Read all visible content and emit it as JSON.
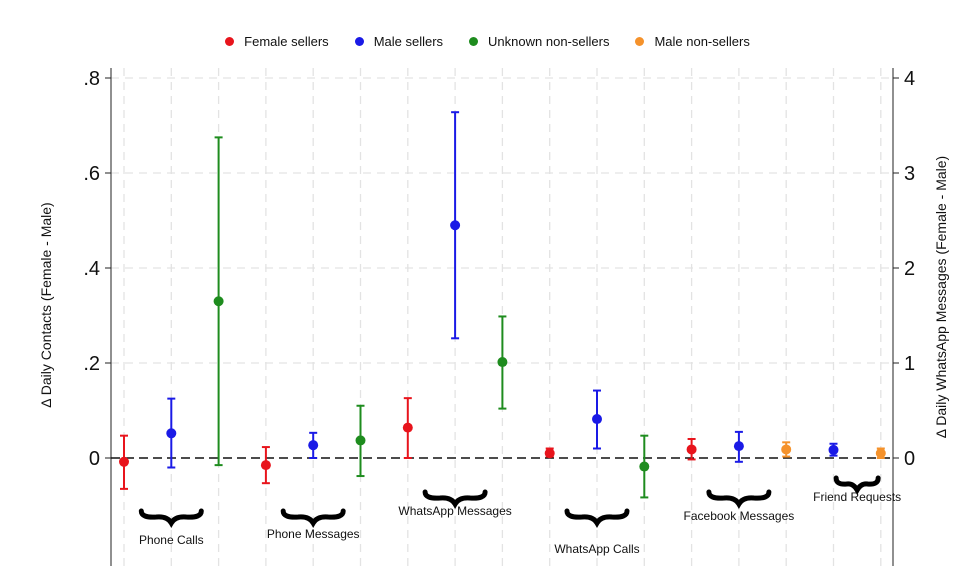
{
  "chart_data": {
    "type": "scatter",
    "subtype": "point-estimate-with-confidence-intervals",
    "legend": {
      "placement": "top-center",
      "entries": [
        {
          "label": "Female sellers",
          "color": "#e8141c"
        },
        {
          "label": "Male sellers",
          "color": "#1a1ae6"
        },
        {
          "label": "Unknown non-sellers",
          "color": "#1e8c1e"
        },
        {
          "label": "Male non-sellers",
          "color": "#f5922b"
        }
      ]
    },
    "ylabel_left": "Δ Daily Contacts (Female - Male)",
    "ylabel_right": "Δ Daily WhatsApp Messages (Female - Male)",
    "ylim_left": [
      -0.22,
      0.82
    ],
    "ylim_right": [
      -1.1,
      4.1
    ],
    "yticks_left": [
      {
        "value": 0,
        "label": "0"
      },
      {
        "value": 0.2,
        "label": ".2"
      },
      {
        "value": 0.4,
        "label": ".4"
      },
      {
        "value": 0.6,
        "label": ".6"
      },
      {
        "value": 0.8,
        "label": ".8"
      }
    ],
    "yticks_right": [
      {
        "value": 0,
        "label": "0"
      },
      {
        "value": 1,
        "label": "1"
      },
      {
        "value": 2,
        "label": "2"
      },
      {
        "value": 3,
        "label": "3"
      },
      {
        "value": 4,
        "label": "4"
      }
    ],
    "grid": true,
    "reference_line": 0,
    "groups": [
      {
        "label": "Phone Calls",
        "axis": "left",
        "points": [
          {
            "series": "Female sellers",
            "y": -0.008,
            "lo": -0.065,
            "hi": 0.047
          },
          {
            "series": "Male sellers",
            "y": 0.052,
            "lo": -0.02,
            "hi": 0.125
          },
          {
            "series": "Unknown non-sellers",
            "y": 0.33,
            "lo": -0.015,
            "hi": 0.675
          }
        ]
      },
      {
        "label": "Phone Messages",
        "axis": "left",
        "points": [
          {
            "series": "Female sellers",
            "y": -0.015,
            "lo": -0.053,
            "hi": 0.023
          },
          {
            "series": "Male sellers",
            "y": 0.027,
            "lo": 0.0,
            "hi": 0.053
          },
          {
            "series": "Unknown non-sellers",
            "y": 0.037,
            "lo": -0.038,
            "hi": 0.11
          }
        ]
      },
      {
        "label": "WhatsApp Messages",
        "axis": "right",
        "points": [
          {
            "series": "Female sellers",
            "y": 0.32,
            "lo": 0.0,
            "hi": 0.63
          },
          {
            "series": "Male sellers",
            "y": 2.45,
            "lo": 1.26,
            "hi": 3.64
          },
          {
            "series": "Unknown non-sellers",
            "y": 1.01,
            "lo": 0.52,
            "hi": 1.49
          }
        ]
      },
      {
        "label": "WhatsApp Calls",
        "axis": "left",
        "points": [
          {
            "series": "Female sellers",
            "y": 0.01,
            "lo": 0.003,
            "hi": 0.02
          },
          {
            "series": "Male sellers",
            "y": 0.082,
            "lo": 0.02,
            "hi": 0.142
          },
          {
            "series": "Unknown non-sellers",
            "y": -0.018,
            "lo": -0.083,
            "hi": 0.047
          }
        ]
      },
      {
        "label": "Facebook Messages",
        "axis": "left",
        "points": [
          {
            "series": "Female sellers",
            "y": 0.018,
            "lo": -0.003,
            "hi": 0.04
          },
          {
            "series": "Male sellers",
            "y": 0.025,
            "lo": -0.008,
            "hi": 0.055
          },
          {
            "series": "Male non-sellers",
            "y": 0.018,
            "lo": 0.003,
            "hi": 0.033
          }
        ]
      },
      {
        "label": "Friend Requests",
        "axis": "left",
        "points": [
          {
            "series": "Male sellers",
            "y": 0.017,
            "lo": 0.005,
            "hi": 0.03
          },
          {
            "series": "Male non-sellers",
            "y": 0.01,
            "lo": 0.0,
            "hi": 0.02
          }
        ]
      }
    ]
  }
}
